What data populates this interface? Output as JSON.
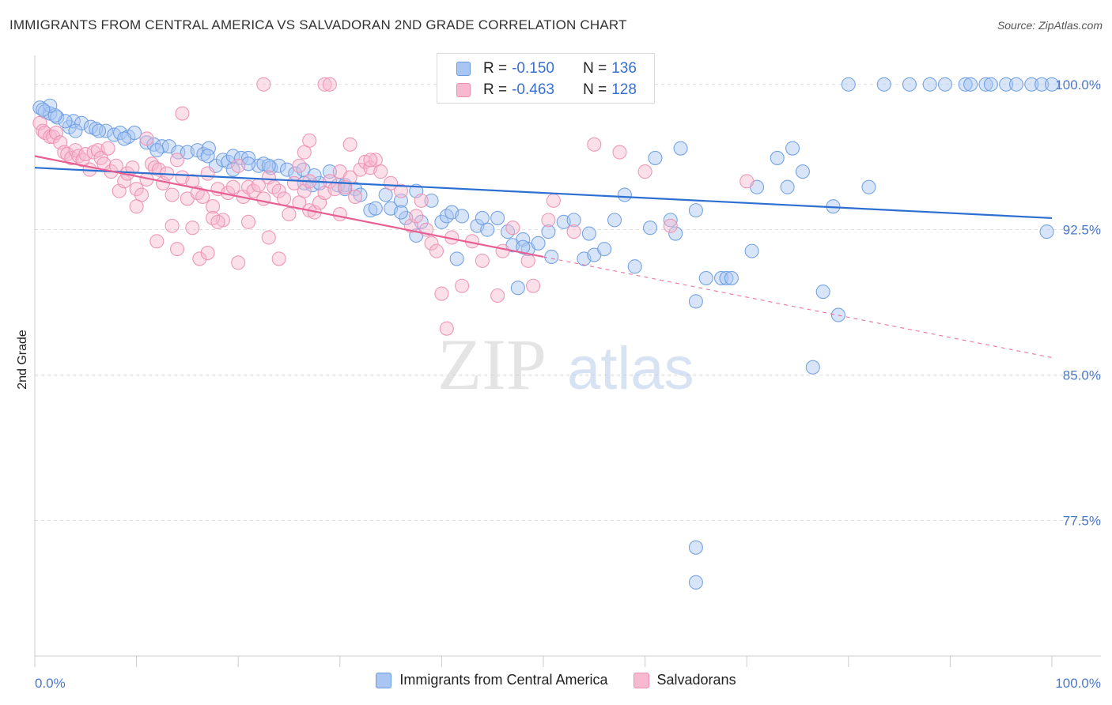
{
  "title": "IMMIGRANTS FROM CENTRAL AMERICA VS SALVADORAN 2ND GRADE CORRELATION CHART",
  "source": "Source: ZipAtlas.com",
  "colors": {
    "blue_fill": "#a9c6f2",
    "blue_stroke": "#6a9be0",
    "blue_line": "#2c6fd1",
    "pink_fill": "#f6b9cf",
    "pink_stroke": "#ec8fb0",
    "pink_line": "#e75f93",
    "grid": "#dddddd",
    "tick_text": "#4a78c8"
  },
  "legend": {
    "rows": [
      {
        "r_label": "R = ",
        "r_value": "-0.150",
        "n_label": "N = ",
        "n_value": "136"
      },
      {
        "r_label": "R = ",
        "r_value": "-0.463",
        "n_label": "N = ",
        "n_value": "128"
      }
    ]
  },
  "bottom_legend": [
    "Immigrants from Central America",
    "Salvadorans"
  ],
  "watermark": {
    "zip": "ZIP",
    "atlas": "atlas"
  },
  "chart_data": {
    "type": "scatter",
    "xlabel": "",
    "ylabel": "2nd Grade",
    "xlim": [
      0,
      100
    ],
    "ylim": [
      70.5,
      101.5
    ],
    "x_tick_labels": [
      "0.0%",
      "100.0%"
    ],
    "y_ticks": [
      100.0,
      92.5,
      85.0,
      77.5
    ],
    "y_tick_labels": [
      "100.0%",
      "92.5%",
      "85.0%",
      "77.5%"
    ],
    "series": [
      {
        "name": "Immigrants from Central America",
        "R": -0.15,
        "N": 136,
        "trend": {
          "x0": 0,
          "y0": 95.7,
          "x1": 100,
          "y1": 93.1,
          "solid_to": 100
        },
        "points": [
          [
            0.5,
            98.8
          ],
          [
            1.0,
            98.6
          ],
          [
            1.5,
            98.5
          ],
          [
            2.2,
            98.3
          ],
          [
            3.4,
            97.8
          ],
          [
            3.8,
            98.1
          ],
          [
            4.6,
            98.0
          ],
          [
            5.5,
            97.8
          ],
          [
            6.0,
            97.7
          ],
          [
            7.0,
            97.6
          ],
          [
            7.8,
            97.4
          ],
          [
            8.4,
            97.5
          ],
          [
            9.2,
            97.3
          ],
          [
            9.8,
            97.5
          ],
          [
            11.0,
            97.0
          ],
          [
            11.7,
            96.9
          ],
          [
            12.5,
            96.8
          ],
          [
            13.2,
            96.8
          ],
          [
            14.1,
            96.5
          ],
          [
            15.0,
            96.5
          ],
          [
            16.0,
            96.6
          ],
          [
            16.6,
            96.4
          ],
          [
            17.1,
            96.7
          ],
          [
            17.8,
            95.8
          ],
          [
            18.5,
            96.1
          ],
          [
            19.0,
            96.0
          ],
          [
            19.5,
            96.3
          ],
          [
            20.3,
            96.2
          ],
          [
            21.0,
            96.2
          ],
          [
            22.0,
            95.8
          ],
          [
            22.5,
            95.9
          ],
          [
            23.2,
            95.7
          ],
          [
            24.0,
            95.8
          ],
          [
            24.8,
            95.6
          ],
          [
            25.6,
            95.4
          ],
          [
            26.4,
            95.6
          ],
          [
            26.5,
            94.9
          ],
          [
            27.3,
            94.8
          ],
          [
            28.0,
            94.9
          ],
          [
            29.0,
            95.5
          ],
          [
            29.8,
            94.8
          ],
          [
            30.5,
            94.8
          ],
          [
            31.5,
            94.6
          ],
          [
            32.0,
            94.3
          ],
          [
            33.0,
            93.5
          ],
          [
            34.5,
            94.3
          ],
          [
            35.0,
            93.6
          ],
          [
            36.0,
            94.0
          ],
          [
            36.5,
            93.1
          ],
          [
            37.5,
            94.5
          ],
          [
            38.0,
            92.9
          ],
          [
            39.0,
            94.0
          ],
          [
            40.0,
            92.9
          ],
          [
            40.5,
            93.2
          ],
          [
            41.0,
            93.4
          ],
          [
            42.0,
            93.2
          ],
          [
            43.5,
            92.7
          ],
          [
            44.0,
            93.1
          ],
          [
            45.5,
            93.1
          ],
          [
            46.5,
            92.4
          ],
          [
            47.0,
            91.7
          ],
          [
            48.0,
            92.0
          ],
          [
            48.5,
            91.5
          ],
          [
            49.5,
            91.8
          ],
          [
            50.5,
            92.4
          ],
          [
            50.8,
            91.1
          ],
          [
            52.0,
            92.9
          ],
          [
            53.0,
            93.0
          ],
          [
            54.0,
            91.0
          ],
          [
            55.0,
            91.2
          ],
          [
            56.0,
            91.5
          ],
          [
            57.0,
            93.0
          ],
          [
            58.0,
            94.3
          ],
          [
            59.0,
            90.6
          ],
          [
            60.5,
            92.6
          ],
          [
            61.0,
            96.2
          ],
          [
            62.5,
            93.0
          ],
          [
            63.0,
            92.3
          ],
          [
            63.5,
            96.7
          ],
          [
            65.0,
            93.5
          ],
          [
            66.0,
            90.0
          ],
          [
            67.5,
            90.0
          ],
          [
            68.0,
            90.0
          ],
          [
            70.5,
            91.4
          ],
          [
            71.0,
            94.7
          ],
          [
            73.0,
            96.2
          ],
          [
            74.0,
            94.7
          ],
          [
            74.5,
            96.7
          ],
          [
            75.5,
            95.5
          ],
          [
            76.5,
            85.4
          ],
          [
            77.5,
            89.3
          ],
          [
            78.5,
            93.7
          ],
          [
            79.0,
            88.1
          ],
          [
            80.0,
            100.0
          ],
          [
            82.0,
            94.7
          ],
          [
            83.5,
            100.0
          ],
          [
            86.0,
            100.0
          ],
          [
            88.0,
            100.0
          ],
          [
            89.5,
            100.0
          ],
          [
            91.5,
            100.0
          ],
          [
            92.0,
            100.0
          ],
          [
            93.5,
            100.0
          ],
          [
            94.0,
            100.0
          ],
          [
            95.5,
            100.0
          ],
          [
            96.5,
            100.0
          ],
          [
            98.0,
            100.0
          ],
          [
            99.0,
            100.0
          ],
          [
            99.5,
            92.4
          ],
          [
            100.0,
            100.0
          ],
          [
            47.5,
            89.5
          ],
          [
            33.5,
            93.6
          ],
          [
            36.0,
            93.4
          ],
          [
            37.5,
            92.2
          ],
          [
            27.5,
            95.3
          ],
          [
            30.5,
            94.6
          ],
          [
            21.0,
            95.9
          ],
          [
            23.0,
            95.8
          ],
          [
            19.5,
            95.6
          ],
          [
            17.0,
            96.3
          ],
          [
            12.0,
            96.6
          ],
          [
            8.8,
            97.2
          ],
          [
            6.3,
            97.6
          ],
          [
            4.0,
            97.6
          ],
          [
            3.0,
            98.1
          ],
          [
            2.0,
            98.4
          ],
          [
            1.5,
            98.9
          ],
          [
            0.8,
            98.7
          ],
          [
            65.0,
            88.8
          ],
          [
            68.5,
            90.0
          ],
          [
            54.5,
            92.3
          ],
          [
            48.0,
            91.6
          ],
          [
            44.5,
            92.5
          ],
          [
            41.5,
            91.0
          ],
          [
            65.0,
            74.3
          ],
          [
            65.0,
            76.1
          ]
        ]
      },
      {
        "name": "Salvadorans",
        "R": -0.463,
        "N": 128,
        "trend": {
          "x0": 0,
          "y0": 96.3,
          "x1": 100,
          "y1": 85.9,
          "solid_to": 50
        },
        "points": [
          [
            0.5,
            98.0
          ],
          [
            0.8,
            97.6
          ],
          [
            1.0,
            97.5
          ],
          [
            1.5,
            97.3
          ],
          [
            1.8,
            97.3
          ],
          [
            2.1,
            97.5
          ],
          [
            2.5,
            97.0
          ],
          [
            2.9,
            96.5
          ],
          [
            3.2,
            96.4
          ],
          [
            3.6,
            96.2
          ],
          [
            4.0,
            96.6
          ],
          [
            4.3,
            96.3
          ],
          [
            4.7,
            96.1
          ],
          [
            5.0,
            96.4
          ],
          [
            5.4,
            95.6
          ],
          [
            5.8,
            96.5
          ],
          [
            6.2,
            96.6
          ],
          [
            6.5,
            96.2
          ],
          [
            6.8,
            95.9
          ],
          [
            7.2,
            96.7
          ],
          [
            7.5,
            95.5
          ],
          [
            8.0,
            95.8
          ],
          [
            8.3,
            94.5
          ],
          [
            8.8,
            95.0
          ],
          [
            9.1,
            95.4
          ],
          [
            9.6,
            95.7
          ],
          [
            10.0,
            94.6
          ],
          [
            10.5,
            94.3
          ],
          [
            11.0,
            95.1
          ],
          [
            11.5,
            95.9
          ],
          [
            11.8,
            95.7
          ],
          [
            12.2,
            95.6
          ],
          [
            12.6,
            94.9
          ],
          [
            13.0,
            95.4
          ],
          [
            13.5,
            94.3
          ],
          [
            14.0,
            96.1
          ],
          [
            14.5,
            95.2
          ],
          [
            15.0,
            94.1
          ],
          [
            15.5,
            95.0
          ],
          [
            16.0,
            94.4
          ],
          [
            16.5,
            94.2
          ],
          [
            17.0,
            95.4
          ],
          [
            17.5,
            93.7
          ],
          [
            18.0,
            94.6
          ],
          [
            18.5,
            93.0
          ],
          [
            19.0,
            94.4
          ],
          [
            19.5,
            94.7
          ],
          [
            20.0,
            95.8
          ],
          [
            20.5,
            94.2
          ],
          [
            21.0,
            94.7
          ],
          [
            21.5,
            94.5
          ],
          [
            22.0,
            94.8
          ],
          [
            22.5,
            94.1
          ],
          [
            23.0,
            95.2
          ],
          [
            23.5,
            94.7
          ],
          [
            24.0,
            94.5
          ],
          [
            24.5,
            94.1
          ],
          [
            25.0,
            93.3
          ],
          [
            25.5,
            94.9
          ],
          [
            26.0,
            93.9
          ],
          [
            26.5,
            94.5
          ],
          [
            27.0,
            93.5
          ],
          [
            27.5,
            93.4
          ],
          [
            28.0,
            93.9
          ],
          [
            28.5,
            94.4
          ],
          [
            29.0,
            95.0
          ],
          [
            29.5,
            94.6
          ],
          [
            30.0,
            93.3
          ],
          [
            30.5,
            94.7
          ],
          [
            31.0,
            95.2
          ],
          [
            31.5,
            94.2
          ],
          [
            32.0,
            95.6
          ],
          [
            32.5,
            96.0
          ],
          [
            33.0,
            95.7
          ],
          [
            33.5,
            96.1
          ],
          [
            34.0,
            95.5
          ],
          [
            10.0,
            93.7
          ],
          [
            12.0,
            91.9
          ],
          [
            13.5,
            92.7
          ],
          [
            14.0,
            91.5
          ],
          [
            15.5,
            92.6
          ],
          [
            16.2,
            91.0
          ],
          [
            17.0,
            91.3
          ],
          [
            17.5,
            93.1
          ],
          [
            18.0,
            92.9
          ],
          [
            20.0,
            90.8
          ],
          [
            21.0,
            92.9
          ],
          [
            23.0,
            92.1
          ],
          [
            24.0,
            91.0
          ],
          [
            26.0,
            95.8
          ],
          [
            26.5,
            96.5
          ],
          [
            27.0,
            97.1
          ],
          [
            30.0,
            95.5
          ],
          [
            31.0,
            96.9
          ],
          [
            33.0,
            96.1
          ],
          [
            35.0,
            94.9
          ],
          [
            36.0,
            94.5
          ],
          [
            37.0,
            92.7
          ],
          [
            37.5,
            93.2
          ],
          [
            38.0,
            94.0
          ],
          [
            38.5,
            92.5
          ],
          [
            39.0,
            91.8
          ],
          [
            39.5,
            91.4
          ],
          [
            40.0,
            89.2
          ],
          [
            40.5,
            87.4
          ],
          [
            41.0,
            92.1
          ],
          [
            42.0,
            89.6
          ],
          [
            43.0,
            91.9
          ],
          [
            44.0,
            90.9
          ],
          [
            45.5,
            89.1
          ],
          [
            46.0,
            91.4
          ],
          [
            47.0,
            92.6
          ],
          [
            48.5,
            90.9
          ],
          [
            49.0,
            89.6
          ],
          [
            50.5,
            93.0
          ],
          [
            51.0,
            94.0
          ],
          [
            53.0,
            92.4
          ],
          [
            55.0,
            96.9
          ],
          [
            57.5,
            96.5
          ],
          [
            60.0,
            95.5
          ],
          [
            62.5,
            92.7
          ],
          [
            70.0,
            95.0
          ],
          [
            14.5,
            98.5
          ],
          [
            27.0,
            95.0
          ],
          [
            28.5,
            100.0
          ],
          [
            29.0,
            100.0
          ],
          [
            22.5,
            100.0
          ],
          [
            11.0,
            97.2
          ]
        ]
      }
    ]
  }
}
